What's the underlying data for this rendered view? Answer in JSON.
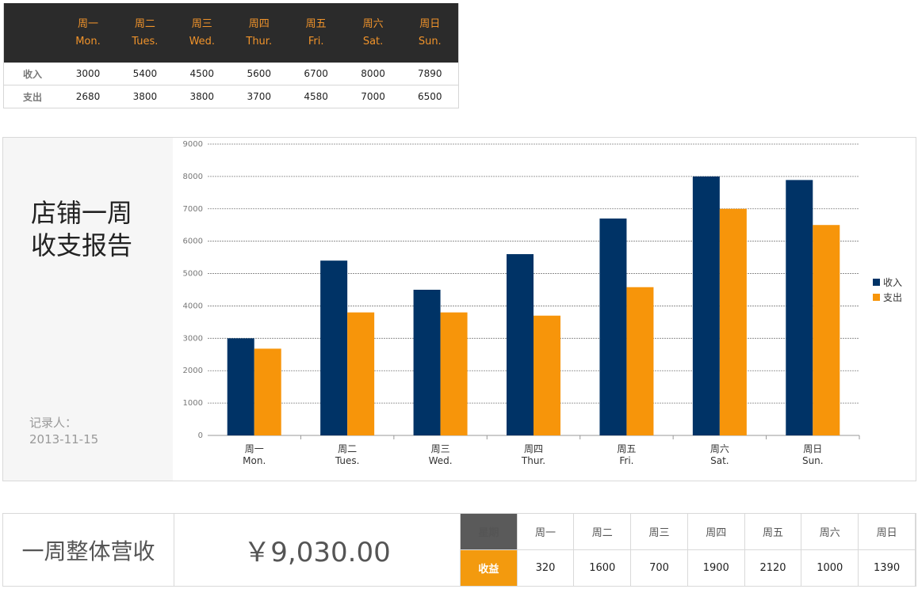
{
  "top_table": {
    "days": [
      {
        "cn": "周一",
        "en": "Mon."
      },
      {
        "cn": "周二",
        "en": "Tues."
      },
      {
        "cn": "周三",
        "en": "Wed."
      },
      {
        "cn": "周四",
        "en": "Thur."
      },
      {
        "cn": "周五",
        "en": "Fri."
      },
      {
        "cn": "周六",
        "en": "Sat."
      },
      {
        "cn": "周日",
        "en": "Sun."
      }
    ],
    "rows": [
      {
        "label": "收入",
        "values": [
          "3000",
          "5400",
          "4500",
          "5600",
          "6700",
          "8000",
          "7890"
        ]
      },
      {
        "label": "支出",
        "values": [
          "2680",
          "3800",
          "3800",
          "3700",
          "4580",
          "7000",
          "6500"
        ]
      }
    ]
  },
  "side": {
    "title_line1": "店铺一周",
    "title_line2": "收支报告",
    "recorder_label": "记录人：",
    "date": "2013-11-15"
  },
  "chart_data": {
    "type": "bar",
    "categories": [
      "周一\nMon.",
      "周二\nTues.",
      "周三\nWed.",
      "周四\nThur.",
      "周五\nFri.",
      "周六\nSat.",
      "周日\nSun."
    ],
    "category_labels": [
      {
        "cn": "周一",
        "en": "Mon."
      },
      {
        "cn": "周二",
        "en": "Tues."
      },
      {
        "cn": "周三",
        "en": "Wed."
      },
      {
        "cn": "周四",
        "en": "Thur."
      },
      {
        "cn": "周五",
        "en": "Fri."
      },
      {
        "cn": "周六",
        "en": "Sat."
      },
      {
        "cn": "周日",
        "en": "Sun."
      }
    ],
    "series": [
      {
        "name": "收入",
        "values": [
          3000,
          5400,
          4500,
          5600,
          6700,
          8000,
          7890
        ],
        "color": "#003366"
      },
      {
        "name": "支出",
        "values": [
          2680,
          3800,
          3800,
          3700,
          4580,
          7000,
          6500
        ],
        "color": "#f7950a"
      }
    ],
    "ylim": [
      0,
      9000
    ],
    "yticks": [
      0,
      1000,
      2000,
      3000,
      4000,
      5000,
      6000,
      7000,
      8000,
      9000
    ],
    "grid": "dashed horizontal",
    "legend": "right",
    "title": "",
    "xlabel": "",
    "ylabel": ""
  },
  "bottom": {
    "label": "一周整体营收",
    "total": "￥9,030.00",
    "weekday_header": "星期",
    "profit_header": "收益",
    "days": [
      "周一",
      "周二",
      "周三",
      "周四",
      "周五",
      "周六",
      "周日"
    ],
    "profits": [
      "320",
      "1600",
      "700",
      "1900",
      "2120",
      "1000",
      "1390"
    ]
  }
}
